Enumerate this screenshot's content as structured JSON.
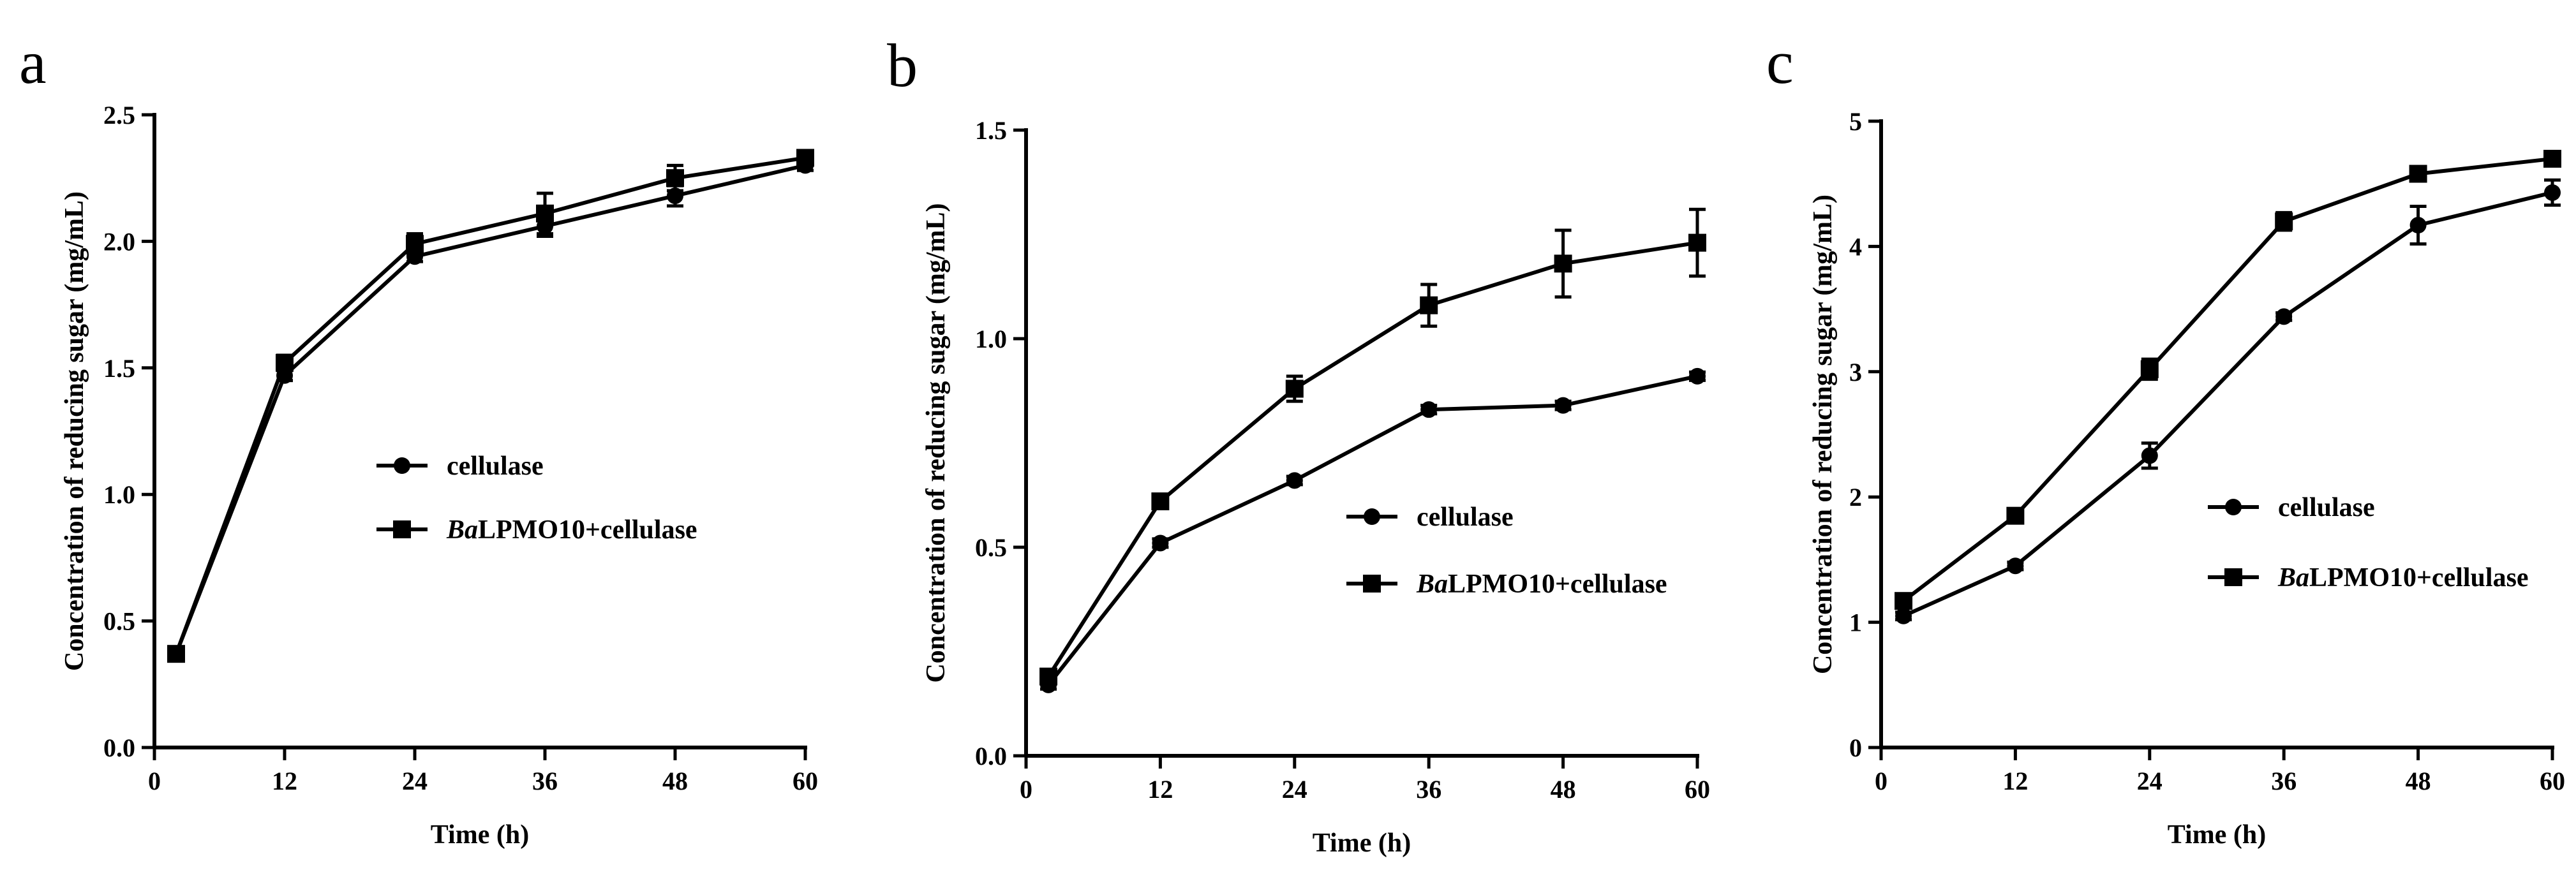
{
  "chart_data": [
    {
      "panel": "a",
      "type": "line",
      "xlabel": "Time (h)",
      "ylabel": "Concentration of reducing sugar (mg/mL)",
      "xlim": [
        0,
        60
      ],
      "ylim": [
        0,
        2.5
      ],
      "xticks": [
        0,
        12,
        24,
        36,
        48,
        60
      ],
      "yticks": [
        0.0,
        0.5,
        1.0,
        1.5,
        2.0,
        2.5
      ],
      "ytick_labels": [
        "0.0",
        "0.5",
        "1.0",
        "1.5",
        "2.0",
        "2.5"
      ],
      "legend_position": "center-right",
      "series": [
        {
          "name": "cellulase",
          "marker": "circle",
          "x": [
            2,
            12,
            24,
            36,
            48,
            60
          ],
          "y": [
            0.37,
            1.47,
            1.94,
            2.06,
            2.18,
            2.3
          ],
          "err": [
            0.02,
            0.02,
            0.02,
            0.04,
            0.04,
            0.02
          ]
        },
        {
          "name": "BaLPMO10+cellulase",
          "name_italic": "Ba",
          "name_rest": "LPMO10+cellulase",
          "marker": "square",
          "x": [
            2,
            12,
            24,
            36,
            48,
            60
          ],
          "y": [
            0.37,
            1.52,
            1.99,
            2.11,
            2.25,
            2.33
          ],
          "err": [
            0.02,
            0.03,
            0.04,
            0.08,
            0.05,
            0.02
          ]
        }
      ]
    },
    {
      "panel": "b",
      "type": "line",
      "xlabel": "Time (h)",
      "ylabel": "Concentration of reducing sugar (mg/mL)",
      "xlim": [
        0,
        60
      ],
      "ylim": [
        0,
        1.5
      ],
      "xticks": [
        0,
        12,
        24,
        36,
        48,
        60
      ],
      "yticks": [
        0.0,
        0.5,
        1.0,
        1.5
      ],
      "ytick_labels": [
        "0.0",
        "0.5",
        "1.0",
        "1.5"
      ],
      "legend_position": "center-right",
      "series": [
        {
          "name": "cellulase",
          "marker": "circle",
          "x": [
            2,
            12,
            24,
            36,
            48,
            60
          ],
          "y": [
            0.17,
            0.51,
            0.66,
            0.83,
            0.84,
            0.91
          ],
          "err": [
            0.01,
            0.01,
            0.01,
            0.01,
            0.01,
            0.01
          ]
        },
        {
          "name": "BaLPMO10+cellulase",
          "name_italic": "Ba",
          "name_rest": "LPMO10+cellulase",
          "marker": "square",
          "x": [
            2,
            12,
            24,
            36,
            48,
            60
          ],
          "y": [
            0.19,
            0.61,
            0.88,
            1.08,
            1.18,
            1.23
          ],
          "err": [
            0.01,
            0.01,
            0.03,
            0.05,
            0.08,
            0.08
          ]
        }
      ]
    },
    {
      "panel": "c",
      "type": "line",
      "xlabel": "Time (h)",
      "ylabel": "Concentration of reducing sugar (mg/mL)",
      "xlim": [
        0,
        60
      ],
      "ylim": [
        0,
        5
      ],
      "xticks": [
        0,
        12,
        24,
        36,
        48,
        60
      ],
      "yticks": [
        0,
        1,
        2,
        3,
        4,
        5
      ],
      "ytick_labels": [
        "0",
        "1",
        "2",
        "3",
        "4",
        "5"
      ],
      "legend_position": "center-right",
      "series": [
        {
          "name": "cellulase",
          "marker": "circle",
          "x": [
            2,
            12,
            24,
            36,
            48,
            60
          ],
          "y": [
            1.05,
            1.45,
            2.33,
            3.44,
            4.17,
            4.43
          ],
          "err": [
            0.03,
            0.03,
            0.1,
            0.03,
            0.15,
            0.1
          ]
        },
        {
          "name": "BaLPMO10+cellulase",
          "name_italic": "Ba",
          "name_rest": "LPMO10+cellulase",
          "marker": "square",
          "x": [
            2,
            12,
            24,
            36,
            48,
            60
          ],
          "y": [
            1.17,
            1.85,
            3.02,
            4.2,
            4.58,
            4.7
          ],
          "err": [
            0.03,
            0.03,
            0.08,
            0.07,
            0.04,
            0.04
          ]
        }
      ]
    }
  ]
}
